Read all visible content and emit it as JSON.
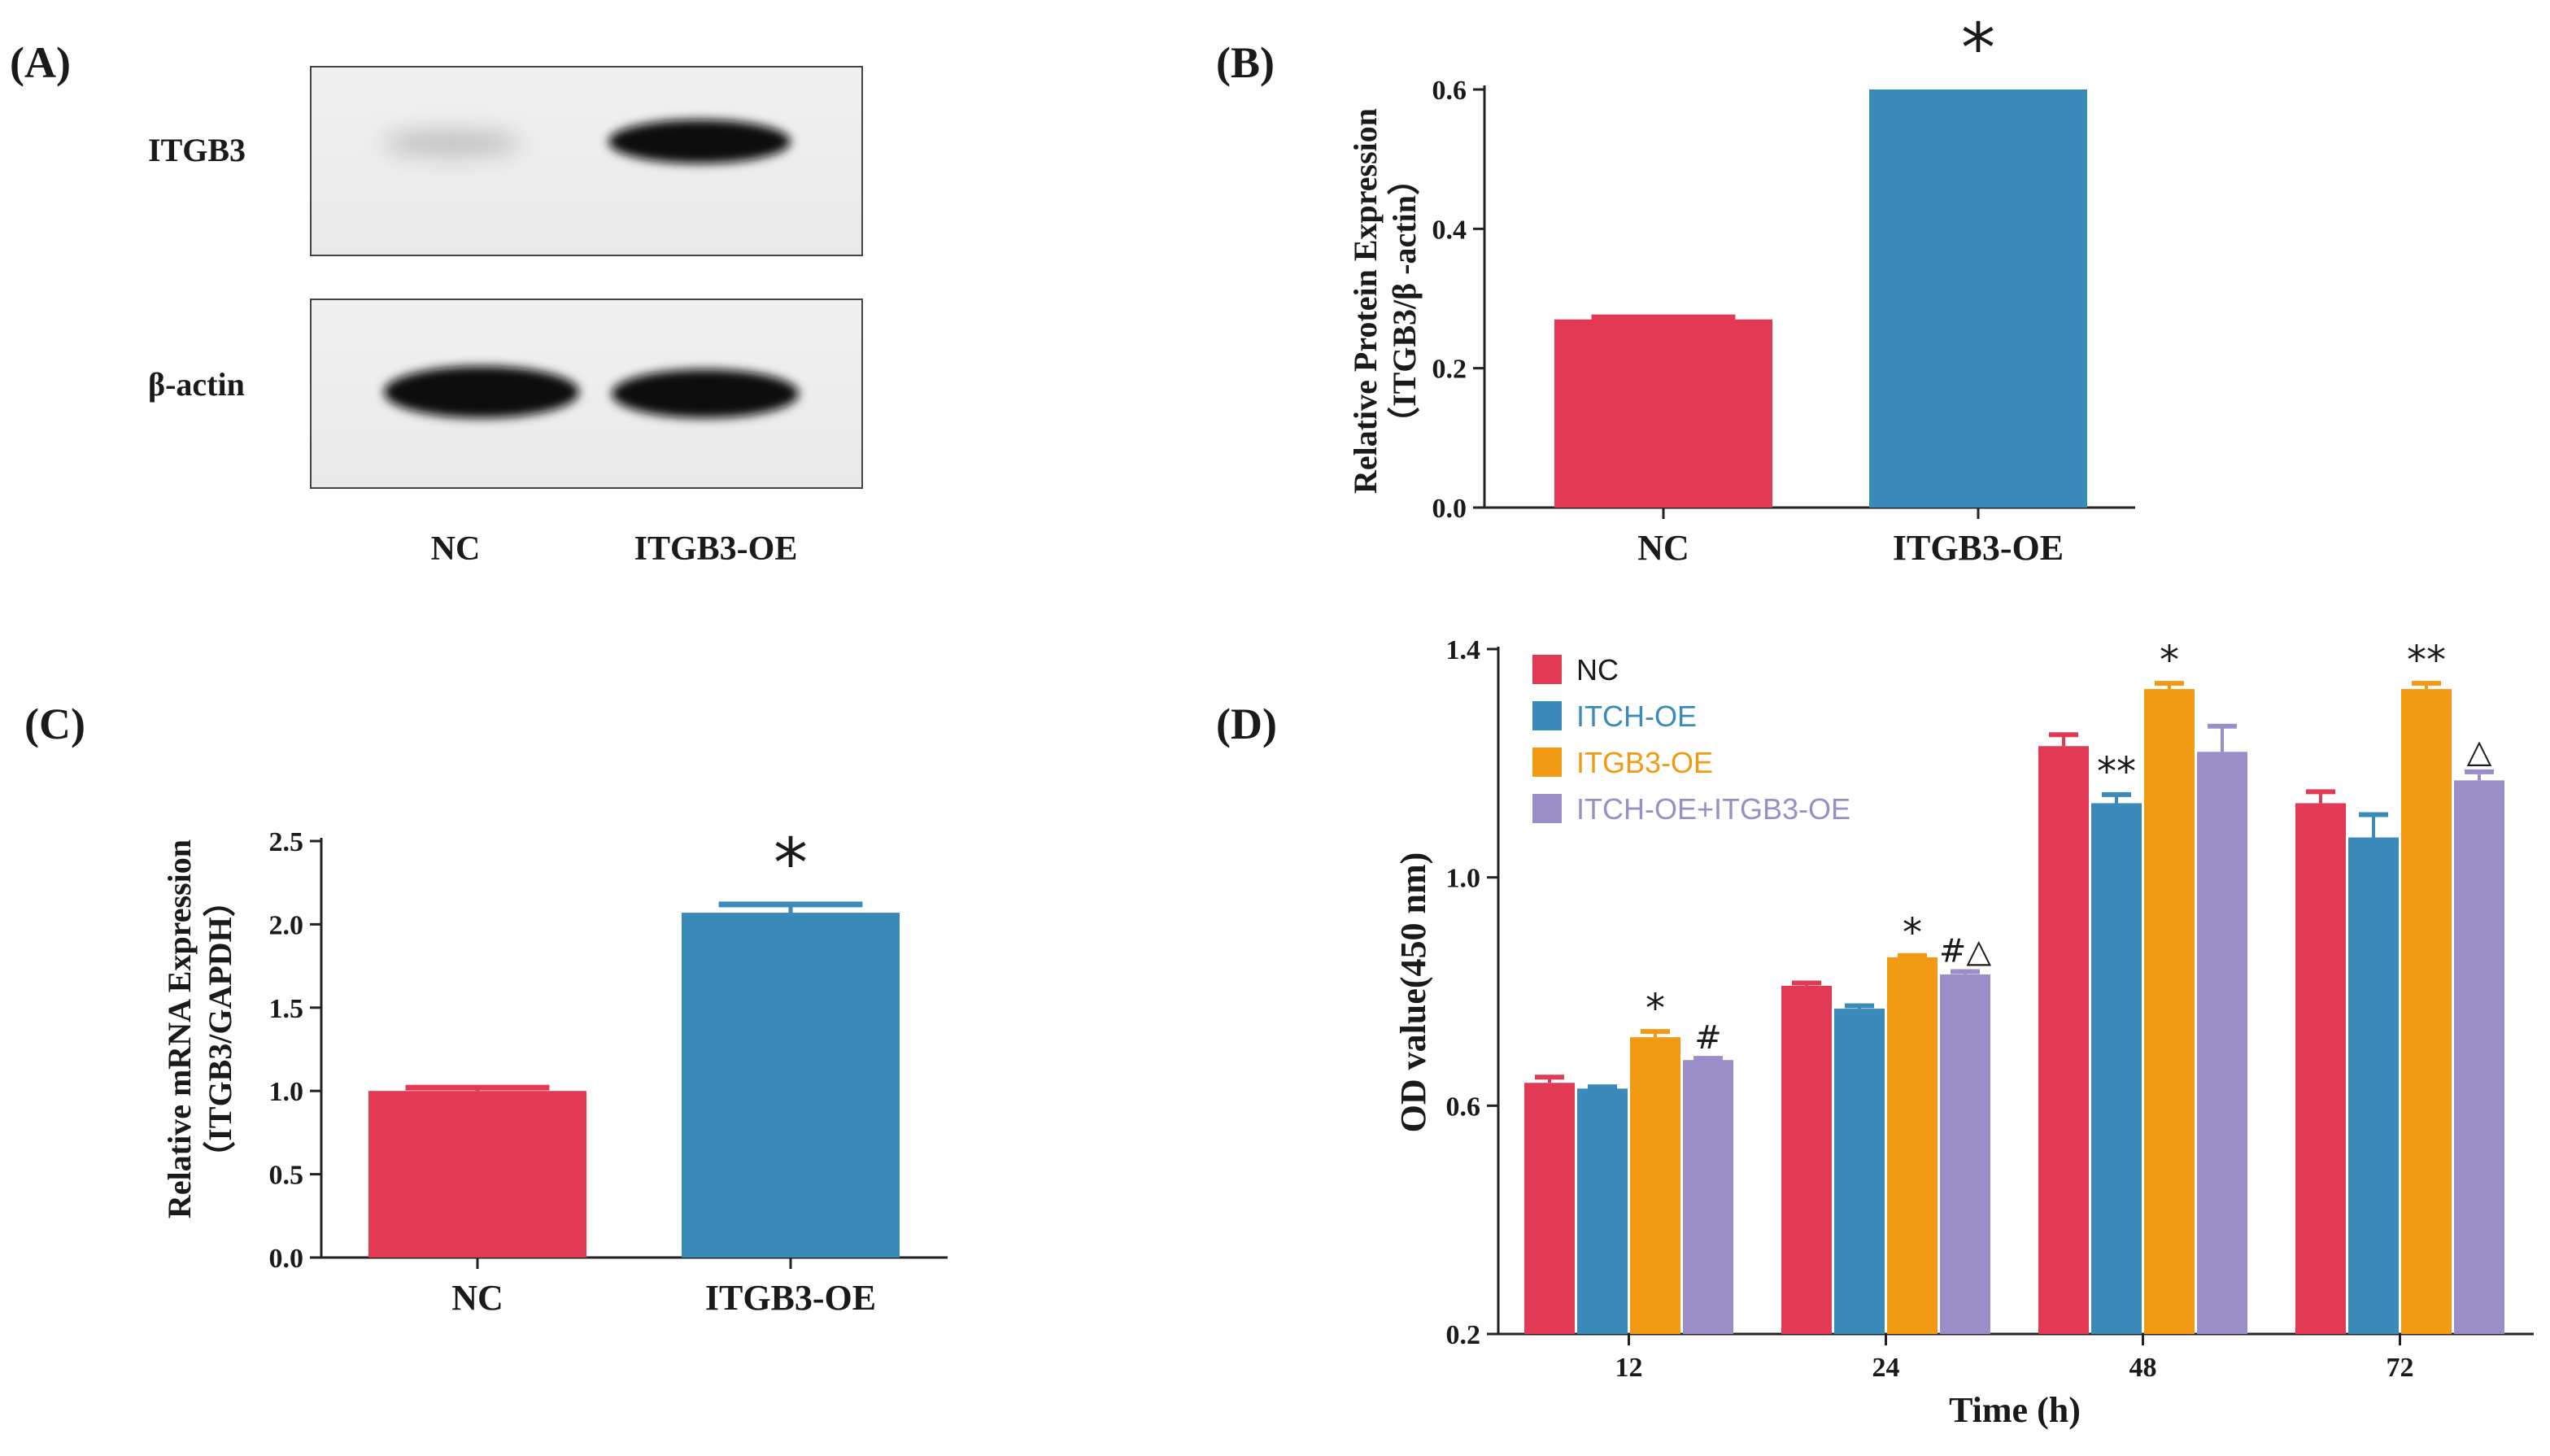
{
  "panels": {
    "a": {
      "letter": "(A)",
      "rows": [
        "ITGB3",
        "β-actin"
      ],
      "lanes": [
        "NC",
        "ITGB3-OE"
      ]
    }
  },
  "colors": {
    "red": "#e23a55",
    "blue": "#3a8bba",
    "orange": "#f39a14",
    "purple": "#9b8ec8"
  },
  "chart_data": [
    {
      "panel": "(B)",
      "type": "bar",
      "categories": [
        "NC",
        "ITGB3-OE"
      ],
      "values": [
        0.27,
        0.6
      ],
      "errors": [
        0.003,
        0.0
      ],
      "colors": [
        "#e23a55",
        "#3a8bba"
      ],
      "ylabel": "Relative Protein Expression",
      "ylabel2": "（ITGB3/β -actin）",
      "ylim": [
        0,
        0.6
      ],
      "yticks": [
        "0.0",
        "0.2",
        "0.4",
        "0.6"
      ],
      "annotations": [
        {
          "category": "ITGB3-OE",
          "text": "*"
        }
      ]
    },
    {
      "panel": "(C)",
      "type": "bar",
      "categories": [
        "NC",
        "ITGB3-OE"
      ],
      "values": [
        1.0,
        2.07
      ],
      "errors": [
        0.02,
        0.05
      ],
      "colors": [
        "#e23a55",
        "#3a8bba"
      ],
      "ylabel": "Relative mRNA Expression",
      "ylabel2": "（ITGB3/GAPDH）",
      "ylim": [
        0,
        2.5
      ],
      "yticks": [
        "0.0",
        "0.5",
        "1.0",
        "1.5",
        "2.0",
        "2.5"
      ],
      "annotations": [
        {
          "category": "ITGB3-OE",
          "text": "*"
        }
      ]
    },
    {
      "panel": "(D)",
      "type": "bar",
      "categories": [
        "12",
        "24",
        "48",
        "72"
      ],
      "xlabel": "Time (h)",
      "ylabel": "OD value(450 nm)",
      "ylim": [
        0.2,
        1.4
      ],
      "yticks": [
        "0.2",
        "0.6",
        "1.0",
        "1.4"
      ],
      "legend": "top-left",
      "series": [
        {
          "name": "NC",
          "color": "#e23a55",
          "values": [
            0.64,
            0.81,
            1.23,
            1.13
          ],
          "errors": [
            0.01,
            0.005,
            0.02,
            0.02
          ],
          "marks": [
            "",
            "",
            "",
            ""
          ]
        },
        {
          "name": "ITCH-OE",
          "color": "#3a8bba",
          "values": [
            0.63,
            0.77,
            1.13,
            1.07
          ],
          "errors": [
            0.003,
            0.005,
            0.015,
            0.04
          ],
          "marks": [
            "",
            "",
            "**",
            ""
          ]
        },
        {
          "name": "ITGB3-OE",
          "color": "#f39a14",
          "values": [
            0.72,
            0.86,
            1.33,
            1.33
          ],
          "errors": [
            0.01,
            0.003,
            0.01,
            0.01
          ],
          "marks": [
            "*",
            "*",
            "*",
            "**"
          ]
        },
        {
          "name": "ITCH-OE+ITGB3-OE",
          "color": "#9b8ec8",
          "values": [
            0.68,
            0.83,
            1.22,
            1.17
          ],
          "errors": [
            0.003,
            0.005,
            0.045,
            0.015
          ],
          "marks": [
            "#",
            "#△",
            "",
            "△"
          ]
        }
      ]
    }
  ]
}
